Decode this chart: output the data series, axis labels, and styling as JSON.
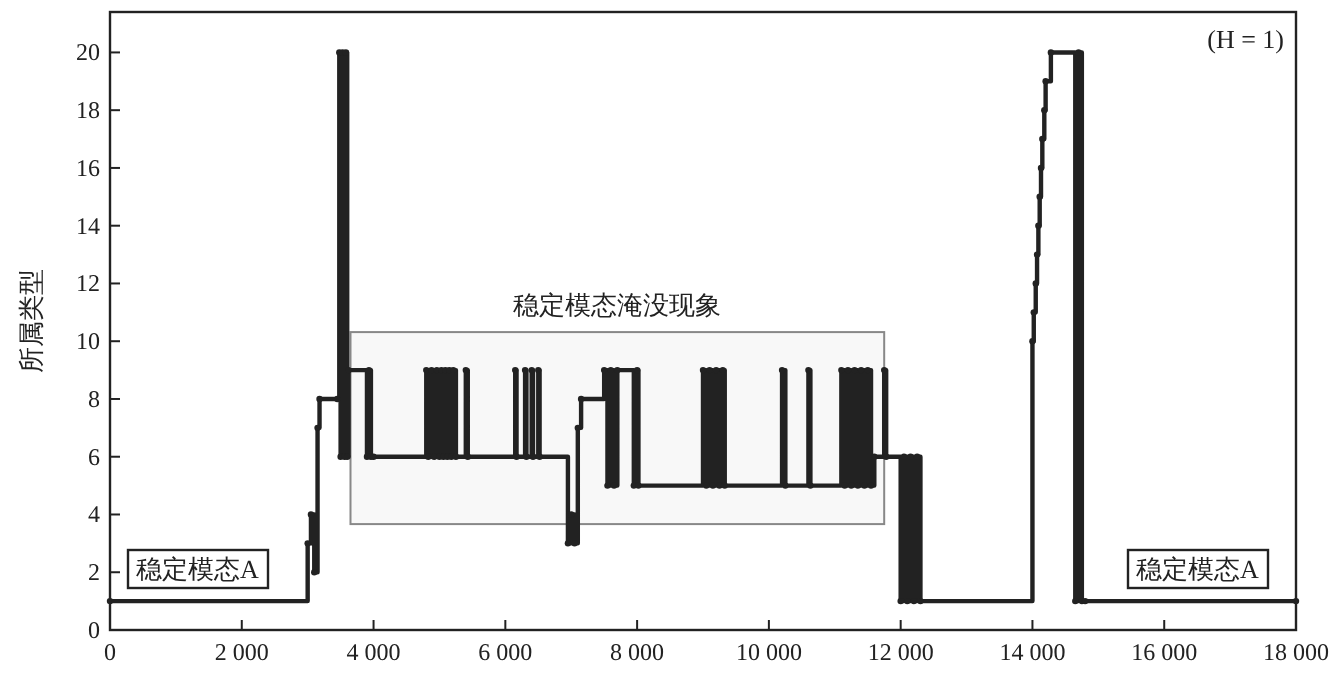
{
  "chart_data": {
    "type": "step",
    "ylabel": "所属类型",
    "color": "#222222",
    "marker": "circle",
    "x": [
      0,
      3000,
      3050,
      3100,
      3150,
      3180,
      3450,
      3480,
      3500,
      3530,
      3560,
      3580,
      3600,
      3620,
      3900,
      3930,
      3960,
      4000,
      4800,
      4830,
      4880,
      4920,
      4960,
      5000,
      5030,
      5060,
      5090,
      5120,
      5150,
      5180,
      5210,
      5250,
      5400,
      5430,
      6150,
      6170,
      6300,
      6320,
      6400,
      6420,
      6500,
      6520,
      6950,
      7000,
      7050,
      7100,
      7150,
      7500,
      7550,
      7600,
      7650,
      7700,
      7950,
      8000,
      8020,
      9000,
      9050,
      9100,
      9150,
      9200,
      9250,
      9300,
      9330,
      10200,
      10250,
      10600,
      10630,
      11100,
      11150,
      11200,
      11250,
      11300,
      11350,
      11400,
      11450,
      11500,
      11550,
      11600,
      11750,
      11780,
      12000,
      12050,
      12100,
      12150,
      12200,
      12250,
      12300,
      14000,
      14020,
      14050,
      14070,
      14090,
      14110,
      14130,
      14150,
      14180,
      14200,
      14280,
      14650,
      14700,
      14750,
      14800,
      18000
    ],
    "values": [
      1,
      3,
      4,
      2,
      7,
      8,
      8,
      20,
      6,
      20,
      6,
      20,
      6,
      9,
      6,
      9,
      6,
      6,
      9,
      6,
      9,
      6,
      9,
      6,
      9,
      6,
      9,
      6,
      9,
      6,
      9,
      6,
      9,
      6,
      9,
      6,
      9,
      6,
      9,
      6,
      9,
      6,
      3,
      4,
      3,
      7,
      8,
      9,
      5,
      9,
      5,
      9,
      5,
      9,
      5,
      9,
      5,
      9,
      5,
      9,
      5,
      9,
      5,
      9,
      5,
      9,
      5,
      9,
      5,
      9,
      5,
      9,
      5,
      9,
      5,
      9,
      5,
      6,
      9,
      6,
      1,
      6,
      1,
      6,
      1,
      6,
      1,
      10,
      11,
      12,
      13,
      14,
      15,
      16,
      17,
      18,
      19,
      20,
      1,
      20,
      1,
      1,
      1
    ],
    "xlim": [
      0,
      18000
    ],
    "ylim": [
      0,
      21.4
    ],
    "xticks": [
      0,
      {
        "value": 2000,
        "label": "2 000"
      },
      {
        "value": 4000,
        "label": "4 000"
      },
      {
        "value": 6000,
        "label": "6 000"
      },
      {
        "value": 8000,
        "label": "8 000"
      },
      {
        "value": 10000,
        "label": "10 000"
      },
      {
        "value": 12000,
        "label": "12 000"
      },
      {
        "value": 14000,
        "label": "14 000"
      },
      {
        "value": 16000,
        "label": "16 000"
      },
      {
        "value": 18000,
        "label": "18 000"
      }
    ],
    "yticks": [
      0,
      2,
      4,
      6,
      8,
      10,
      12,
      14,
      16,
      18,
      20
    ],
    "bands": [
      {
        "axis": "x",
        "from": 3650,
        "to": 11750,
        "label": "稳定模态淹没现象",
        "color": "#888888"
      }
    ],
    "annotations": [
      "(H = 1)",
      "稳定模态A",
      "稳定模态A"
    ]
  }
}
